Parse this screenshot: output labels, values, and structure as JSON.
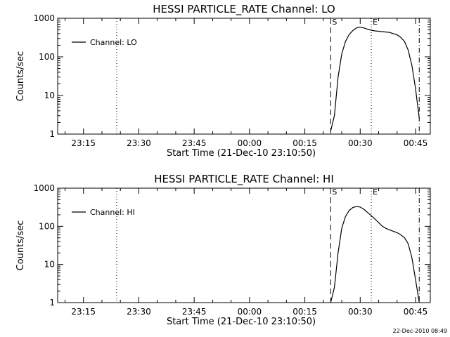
{
  "chart_data": [
    {
      "type": "line",
      "title": "HESSI PARTICLE_RATE Channel: LO",
      "xlabel": "Start Time (21-Dec-10 23:10:50)",
      "ylabel": "Counts/sec",
      "yscale": "log",
      "ylim": [
        1,
        1000
      ],
      "xlim": [
        "23:08",
        "00:49"
      ],
      "xticks": [
        "23:15",
        "23:30",
        "23:45",
        "00:00",
        "00:15",
        "00:30",
        "00:45"
      ],
      "yticks": [
        "1",
        "10",
        "100",
        "1000"
      ],
      "legend": {
        "position": "top-left",
        "entries": [
          "Channel: LO"
        ]
      },
      "markers": [
        {
          "label": "",
          "time": "23:24",
          "style": "dotted"
        },
        {
          "label": "S",
          "time": "00:22",
          "style": "dashed"
        },
        {
          "label": "E",
          "time": "00:33",
          "style": "dotted"
        },
        {
          "label": "",
          "time": "00:46",
          "style": "dashdot"
        }
      ],
      "series": [
        {
          "name": "Channel: LO",
          "x": [
            "00:22",
            "00:23",
            "00:24",
            "00:25",
            "00:26",
            "00:27",
            "00:28",
            "00:29",
            "00:30",
            "00:31",
            "00:32",
            "00:33",
            "00:34",
            "00:35",
            "00:36",
            "00:37",
            "00:38",
            "00:39",
            "00:40",
            "00:41",
            "00:42",
            "00:43",
            "00:44",
            "00:45",
            "00:46"
          ],
          "y": [
            1.2,
            3,
            30,
            120,
            250,
            380,
            480,
            560,
            590,
            560,
            520,
            490,
            470,
            460,
            450,
            440,
            430,
            400,
            370,
            320,
            250,
            150,
            60,
            15,
            2.5
          ]
        }
      ]
    },
    {
      "type": "line",
      "title": "HESSI PARTICLE_RATE Channel: HI",
      "xlabel": "Start Time (21-Dec-10 23:10:50)",
      "ylabel": "Counts/sec",
      "yscale": "log",
      "ylim": [
        1,
        1000
      ],
      "xlim": [
        "23:08",
        "00:49"
      ],
      "xticks": [
        "23:15",
        "23:30",
        "23:45",
        "00:00",
        "00:15",
        "00:30",
        "00:45"
      ],
      "yticks": [
        "1",
        "10",
        "100",
        "1000"
      ],
      "legend": {
        "position": "top-left",
        "entries": [
          "Channel: HI"
        ]
      },
      "markers": [
        {
          "label": "",
          "time": "23:24",
          "style": "dotted"
        },
        {
          "label": "S",
          "time": "00:22",
          "style": "dashed"
        },
        {
          "label": "E",
          "time": "00:33",
          "style": "dotted"
        },
        {
          "label": "",
          "time": "00:46",
          "style": "dashdot"
        }
      ],
      "series": [
        {
          "name": "Channel: HI",
          "x": [
            "00:22",
            "00:23",
            "00:24",
            "00:25",
            "00:26",
            "00:27",
            "00:28",
            "00:29",
            "00:30",
            "00:31",
            "00:32",
            "00:33",
            "00:34",
            "00:35",
            "00:36",
            "00:37",
            "00:38",
            "00:39",
            "00:40",
            "00:41",
            "00:42",
            "00:43",
            "00:44",
            "00:45",
            "00:46"
          ],
          "y": [
            1,
            2.5,
            20,
            90,
            180,
            260,
            310,
            330,
            320,
            280,
            230,
            190,
            155,
            125,
            100,
            88,
            80,
            74,
            68,
            60,
            50,
            35,
            15,
            4,
            1
          ]
        }
      ]
    }
  ],
  "timestamp": "22-Dec-2010 08:49"
}
